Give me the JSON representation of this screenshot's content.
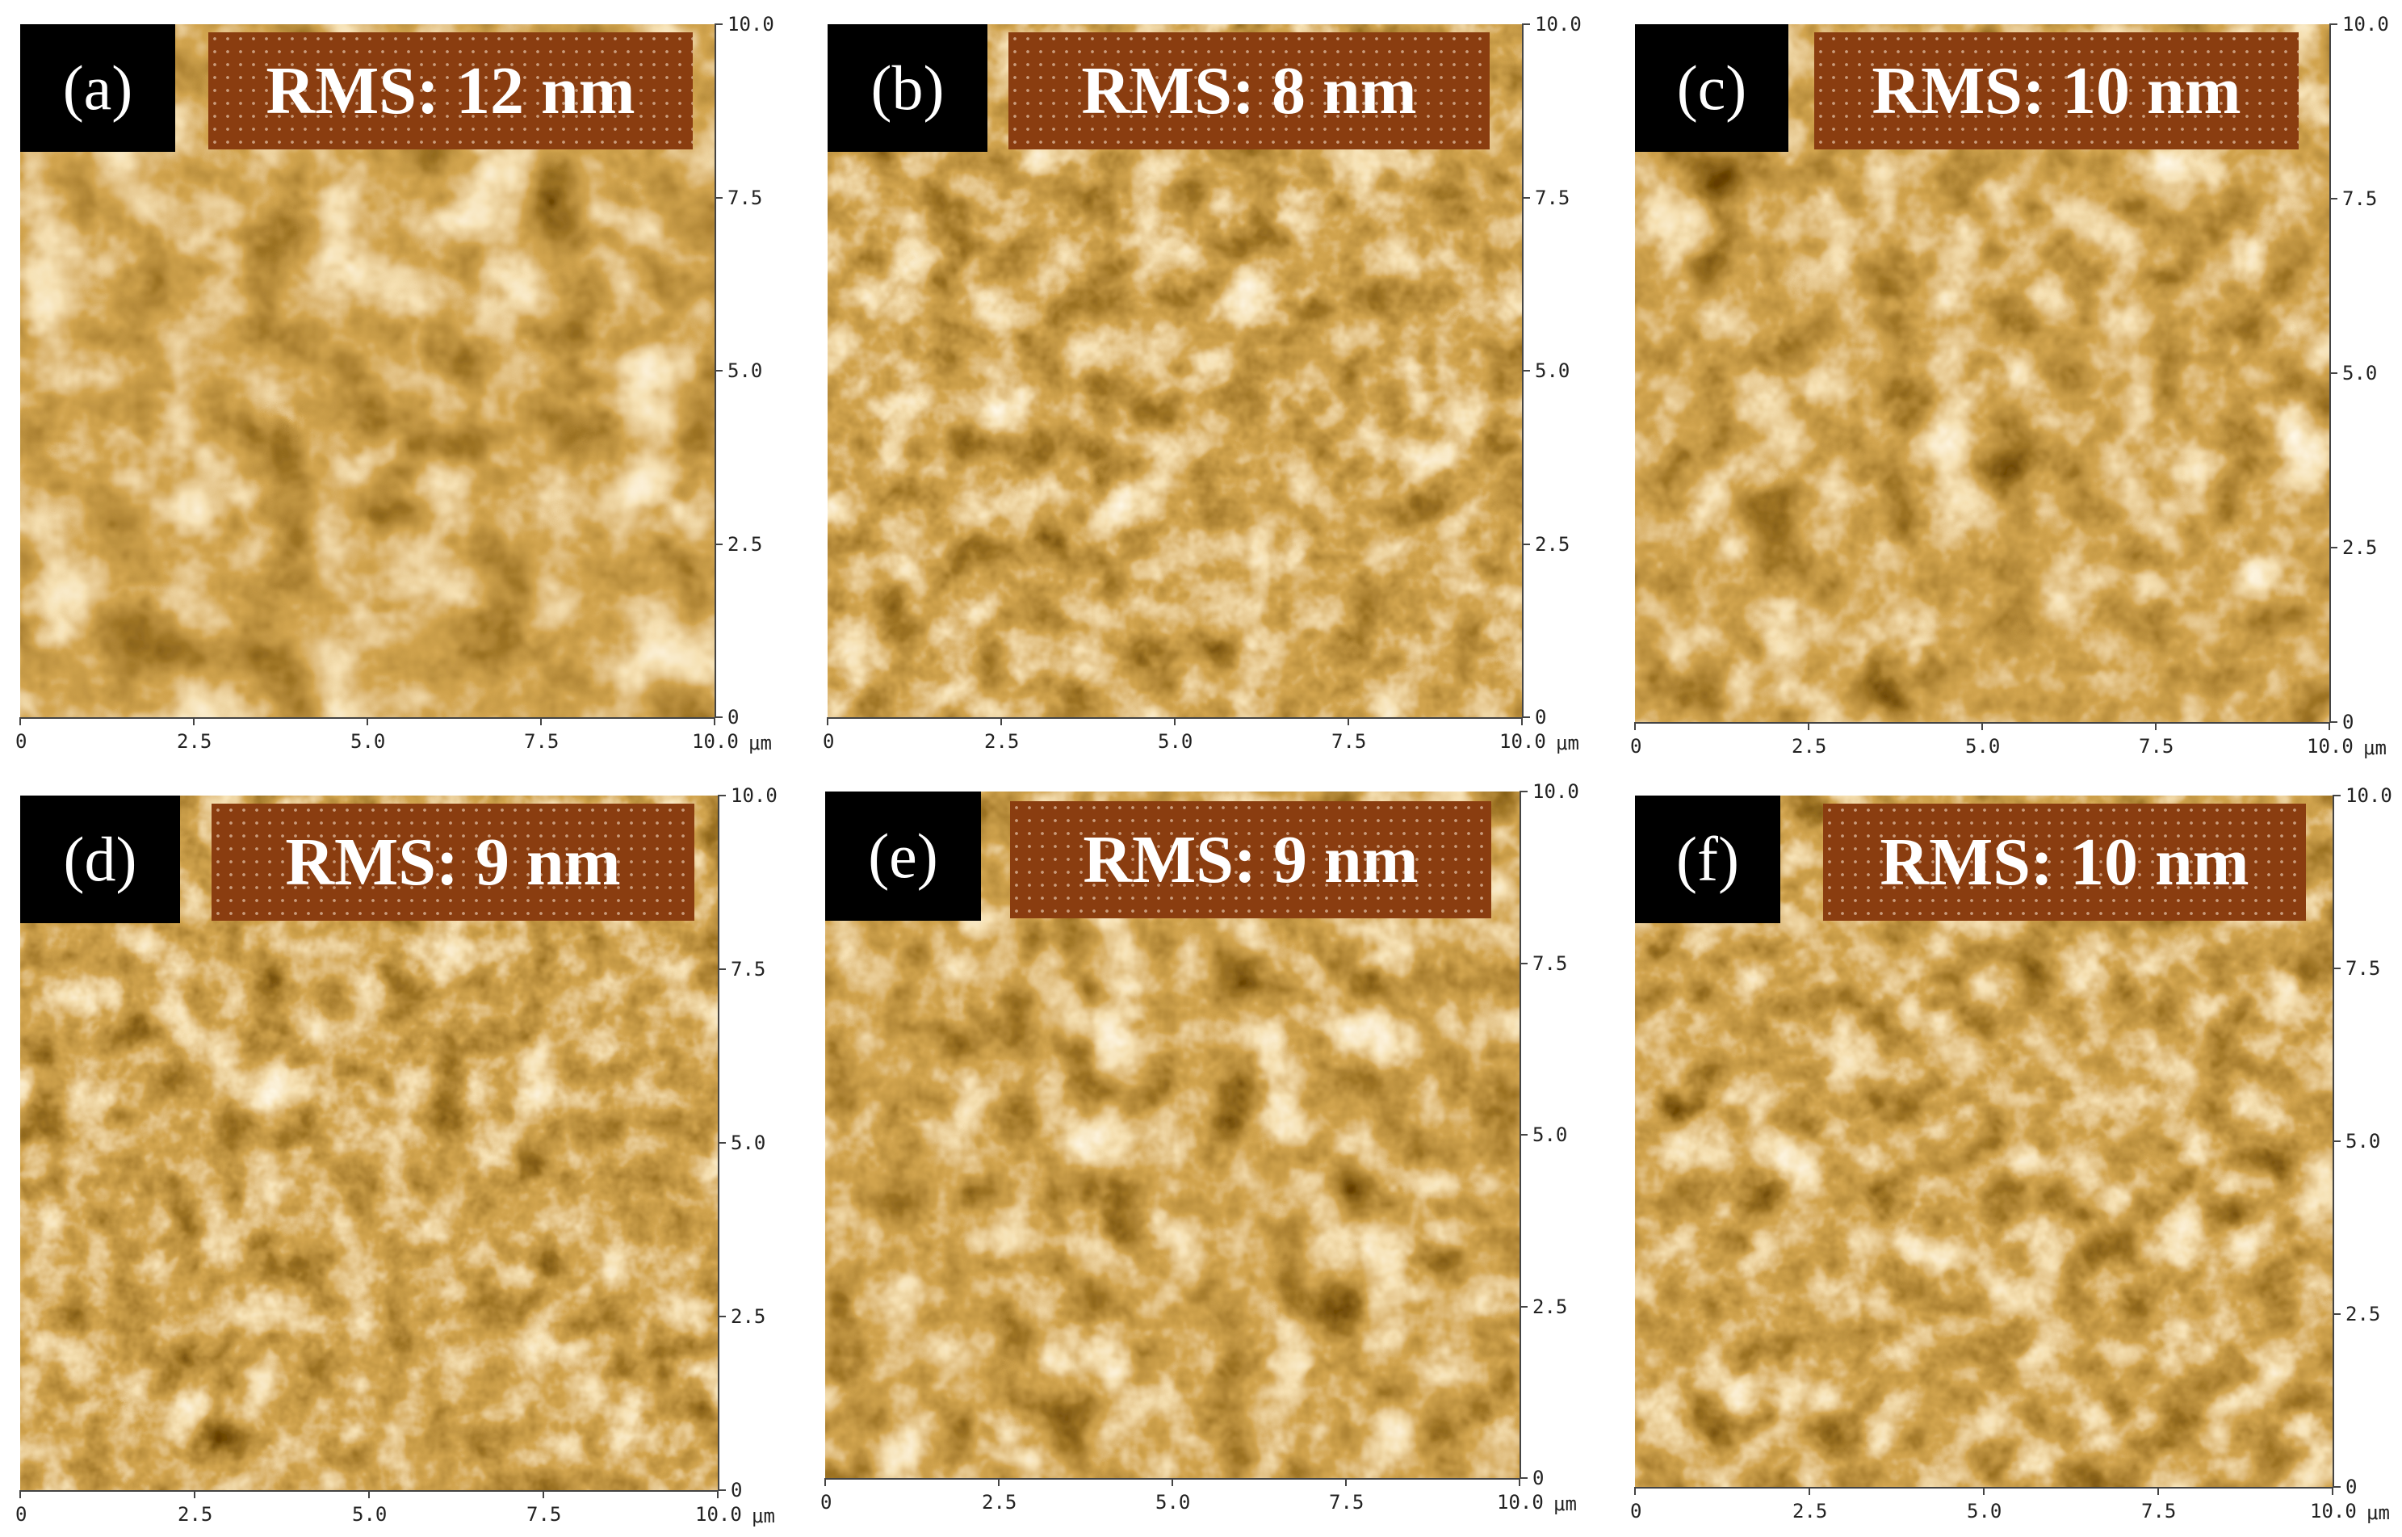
{
  "figure": {
    "colors": {
      "dark": "#2a1000",
      "mid": "#a5580f",
      "light": "#fff0cf",
      "label_box": "#8a3d10"
    },
    "axis_unit": "μm",
    "x_ticks": [
      "0",
      "2.5",
      "5.0",
      "7.5",
      "10.0"
    ],
    "y_ticks": [
      "10.0",
      "7.5",
      "5.0",
      "2.5",
      "0"
    ],
    "panels": [
      {
        "letter": "(a)",
        "rms": "RMS: 12 nm"
      },
      {
        "letter": "(b)",
        "rms": "RMS: 8 nm"
      },
      {
        "letter": "(c)",
        "rms": "RMS: 10 nm"
      },
      {
        "letter": "(d)",
        "rms": "RMS: 9 nm"
      },
      {
        "letter": "(e)",
        "rms": "RMS: 9 nm"
      },
      {
        "letter": "(f)",
        "rms": "RMS: 10 nm"
      }
    ]
  }
}
